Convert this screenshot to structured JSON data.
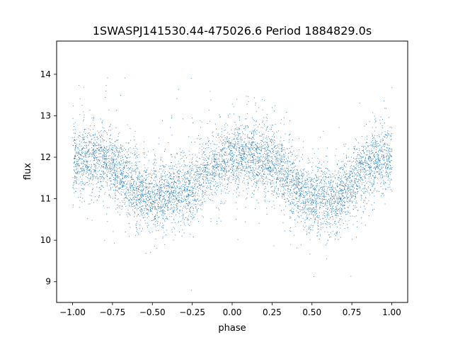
{
  "chart_data": {
    "type": "scatter",
    "title": "1SWASPJ141530.44-475026.6 Period 1884829.0s",
    "xlabel": "phase",
    "ylabel": "flux",
    "xlim": [
      -1.1,
      1.1
    ],
    "ylim": [
      8.5,
      14.8
    ],
    "xticks": [
      -1.0,
      -0.75,
      -0.5,
      -0.25,
      0.0,
      0.25,
      0.5,
      0.75,
      1.0
    ],
    "xtick_labels": [
      "−1.00",
      "−0.75",
      "−0.50",
      "−0.25",
      "0.00",
      "0.25",
      "0.50",
      "0.75",
      "1.00"
    ],
    "yticks": [
      9,
      10,
      11,
      12,
      13,
      14
    ],
    "ytick_labels": [
      "9",
      "10",
      "11",
      "12",
      "13",
      "14"
    ],
    "grid": false,
    "legend": "none",
    "marker_color": "#1f77b4",
    "series": [
      {
        "x": [
          -1.0,
          -0.95,
          -0.9,
          -0.85,
          -0.8,
          -0.75,
          -0.7,
          -0.65,
          -0.6,
          -0.55,
          -0.5,
          -0.45,
          -0.4,
          -0.35,
          -0.3,
          -0.25,
          -0.2,
          -0.15,
          -0.1,
          -0.05,
          0.0,
          0.05,
          0.1,
          0.15,
          0.2,
          0.25,
          0.3,
          0.35,
          0.4,
          0.45,
          0.5,
          0.55,
          0.6,
          0.65,
          0.7,
          0.75,
          0.8,
          0.85,
          0.9,
          0.95,
          1.0
        ],
        "y": [
          11.9,
          11.95,
          12.0,
          12.0,
          11.95,
          11.8,
          11.6,
          11.4,
          11.25,
          11.1,
          11.0,
          11.05,
          11.15,
          11.25,
          11.2,
          11.3,
          11.5,
          11.7,
          11.85,
          11.95,
          12.0,
          12.05,
          12.1,
          12.05,
          11.95,
          11.85,
          11.7,
          11.5,
          11.3,
          11.1,
          11.0,
          11.0,
          11.0,
          11.05,
          11.2,
          11.4,
          11.6,
          11.8,
          11.95,
          12.0,
          12.0
        ]
      }
    ]
  }
}
